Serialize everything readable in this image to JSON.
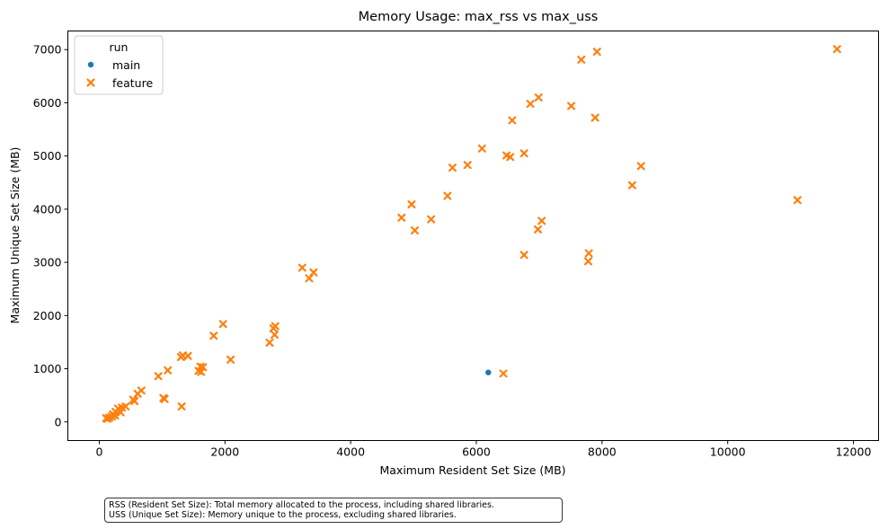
{
  "chart_data": {
    "type": "scatter",
    "title": "Memory Usage: max_rss vs max_uss",
    "xlabel": "Maximum Resident Set Size (MB)",
    "ylabel": "Maximum Unique Set Size (MB)",
    "xlim": [
      -500,
      12400
    ],
    "ylim": [
      -350,
      7350
    ],
    "xticks": [
      0,
      2000,
      4000,
      6000,
      8000,
      10000,
      12000
    ],
    "yticks": [
      0,
      1000,
      2000,
      3000,
      4000,
      5000,
      6000,
      7000
    ],
    "grid": false,
    "legend": {
      "title": "run",
      "placement": "top-left",
      "entries": [
        {
          "name": "main",
          "marker": "circle",
          "color": "#1f77b4"
        },
        {
          "name": "feature",
          "marker": "x",
          "color": "#ff7f0e"
        }
      ]
    },
    "series": [
      {
        "name": "main",
        "color": "#1f77b4",
        "marker": "circle",
        "points": [
          [
            6190,
            930
          ]
        ]
      },
      {
        "name": "feature",
        "color": "#ff7f0e",
        "marker": "x",
        "points": [
          [
            11740,
            7010
          ],
          [
            7920,
            6960
          ],
          [
            7670,
            6810
          ],
          [
            6990,
            6100
          ],
          [
            6860,
            5980
          ],
          [
            7510,
            5940
          ],
          [
            7890,
            5720
          ],
          [
            6570,
            5670
          ],
          [
            6090,
            5140
          ],
          [
            6480,
            5010
          ],
          [
            6540,
            4980
          ],
          [
            6760,
            5050
          ],
          [
            5860,
            4830
          ],
          [
            5620,
            4780
          ],
          [
            8620,
            4810
          ],
          [
            8480,
            4450
          ],
          [
            5540,
            4250
          ],
          [
            4970,
            4090
          ],
          [
            4810,
            3840
          ],
          [
            5280,
            3810
          ],
          [
            5020,
            3600
          ],
          [
            11110,
            4170
          ],
          [
            7040,
            3780
          ],
          [
            6980,
            3620
          ],
          [
            7790,
            3170
          ],
          [
            7780,
            3020
          ],
          [
            6760,
            3140
          ],
          [
            3230,
            2900
          ],
          [
            3410,
            2810
          ],
          [
            3340,
            2700
          ],
          [
            1970,
            1840
          ],
          [
            2800,
            1800
          ],
          [
            2770,
            1760
          ],
          [
            2790,
            1640
          ],
          [
            1820,
            1620
          ],
          [
            2710,
            1490
          ],
          [
            1410,
            1240
          ],
          [
            1330,
            1250
          ],
          [
            1300,
            1220
          ],
          [
            2090,
            1170
          ],
          [
            1610,
            1040
          ],
          [
            1650,
            1030
          ],
          [
            1580,
            960
          ],
          [
            1620,
            940
          ],
          [
            1090,
            970
          ],
          [
            6430,
            910
          ],
          [
            940,
            860
          ],
          [
            1020,
            450
          ],
          [
            1040,
            430
          ],
          [
            1310,
            290
          ],
          [
            670,
            590
          ],
          [
            610,
            530
          ],
          [
            540,
            420
          ],
          [
            560,
            390
          ],
          [
            420,
            290
          ],
          [
            360,
            270
          ],
          [
            300,
            250
          ],
          [
            340,
            180
          ],
          [
            260,
            190
          ],
          [
            220,
            140
          ],
          [
            250,
            120
          ],
          [
            200,
            100
          ],
          [
            160,
            80
          ],
          [
            130,
            60
          ],
          [
            110,
            70
          ]
        ]
      }
    ]
  },
  "note": {
    "line1": "RSS (Resident Set Size): Total memory allocated to the process, including shared libraries.",
    "line2": "USS (Unique Set Size): Memory unique to the process, excluding shared libraries."
  }
}
